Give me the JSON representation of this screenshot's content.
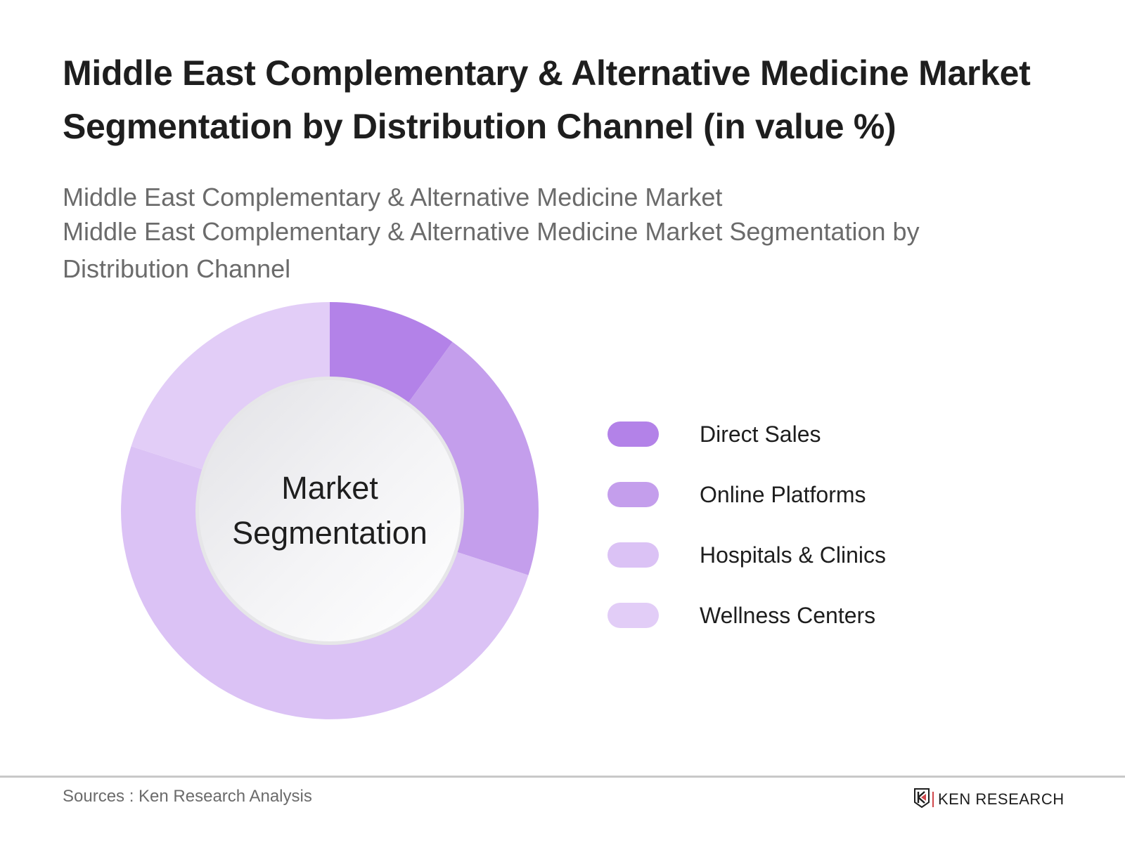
{
  "header": {
    "title": "Middle East Complementary & Alternative Medicine Market Segmentation by Distribution Channel (in value %)",
    "subtitle_line1": "Middle East Complementary & Alternative Medicine Market",
    "subtitle_line2": "Middle East Complementary & Alternative Medicine Market Segmentation by",
    "subtitle_line3": "Distribution Channel"
  },
  "chart": {
    "center_label_line1": "Market",
    "center_label_line2": "Segmentation"
  },
  "legend": {
    "items": [
      {
        "label": "Direct Sales",
        "color": "#b382e8"
      },
      {
        "label": "Online Platforms",
        "color": "#c49eec"
      },
      {
        "label": "Hospitals & Clinics",
        "color": "#dbc2f5"
      },
      {
        "label": "Wellness Centers",
        "color": "#e2cdf7"
      }
    ]
  },
  "footer": {
    "sources": "Sources : Ken Research Analysis",
    "logo_text": "KEN RESEARCH",
    "logo_icon": "ken-research-k-shield-icon"
  },
  "chart_data": {
    "type": "pie",
    "variant": "donut",
    "title": "Middle East Complementary & Alternative Medicine Market Segmentation by Distribution Channel (in value %)",
    "subtitle": "Middle East Complementary & Alternative Medicine Market / Middle East Complementary & Alternative Medicine Market Segmentation by Distribution Channel",
    "center_label": "Market Segmentation",
    "categories": [
      "Direct Sales",
      "Online Platforms",
      "Hospitals & Clinics",
      "Wellness Centers"
    ],
    "values": [
      10,
      20,
      50,
      20
    ],
    "unit": "%",
    "colors": [
      "#b382e8",
      "#c49eec",
      "#dbc2f5",
      "#e2cdf7"
    ],
    "start_angle": "12 o'clock, clockwise",
    "legend_position": "right",
    "data_labels": false,
    "source": "Sources : Ken Research Analysis"
  }
}
